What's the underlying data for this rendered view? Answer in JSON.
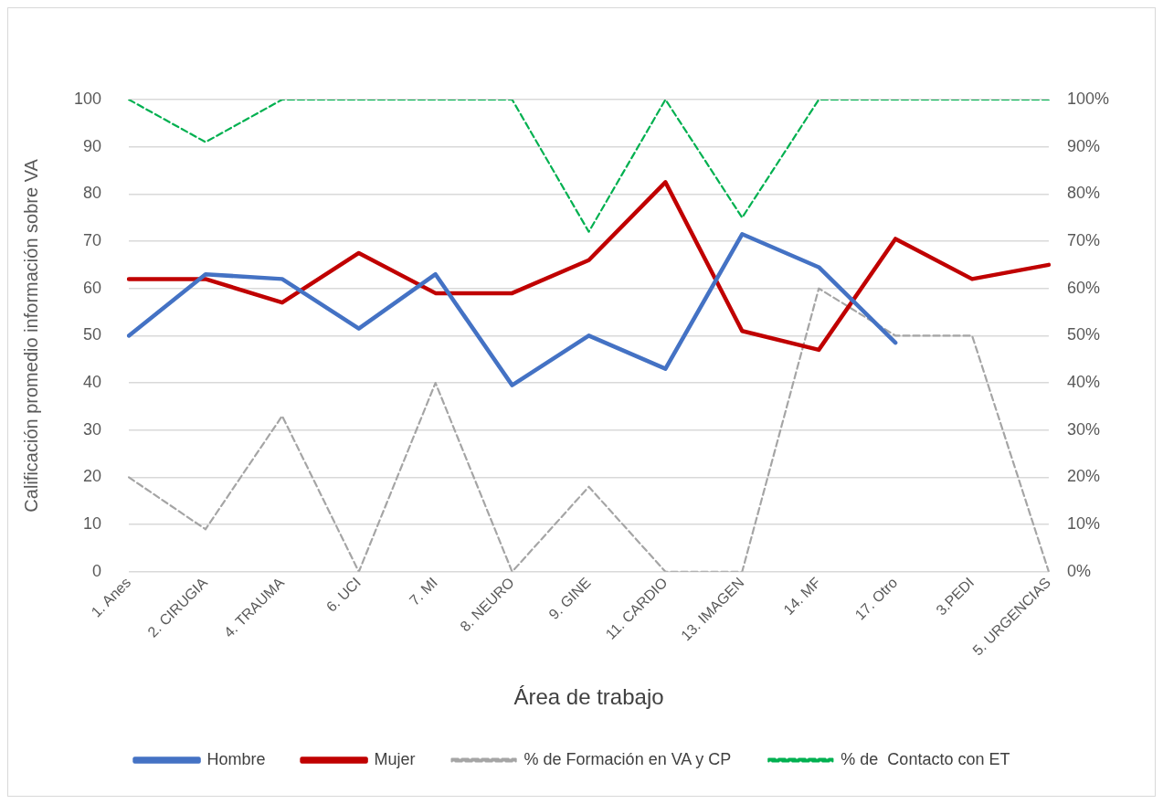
{
  "chart_data": {
    "type": "line",
    "xlabel": "Área de trabajo",
    "ylabel": "Calificación promedio información sobre VA",
    "categories": [
      "1. Anes",
      "2. CIRUGIA",
      "4. TRAUMA",
      "6. UCI",
      "7. MI",
      "8. NEURO",
      "9. GINE",
      "11. CARDIO",
      "13. IMAGEN",
      "14. MF",
      "17. Otro",
      "3.PEDI",
      "5. URGENCIAS"
    ],
    "series": [
      {
        "name": "Hombre",
        "color": "#4472c4",
        "line_style": "solid",
        "values": [
          50,
          63,
          62,
          51.5,
          63,
          39.5,
          50,
          43,
          71.5,
          64.5,
          48.5,
          null,
          null
        ]
      },
      {
        "name": "Mujer",
        "color": "#c00000",
        "line_style": "solid",
        "values": [
          62,
          62,
          57,
          67.5,
          59,
          59,
          66,
          82.5,
          51,
          47,
          70.5,
          62,
          65
        ]
      },
      {
        "name": "% de Formación en VA y CP",
        "color": "#a5a5a5",
        "line_style": "dashed",
        "axis": "y2",
        "values": [
          20,
          9,
          33,
          0,
          40,
          0,
          18,
          0,
          0,
          60,
          50,
          50,
          0
        ]
      },
      {
        "name": "% de  Contacto con ET",
        "color": "#00b050",
        "line_style": "dashed",
        "axis": "y2",
        "values": [
          100,
          91,
          100,
          100,
          100,
          100,
          72,
          100,
          75,
          100,
          100,
          100,
          100
        ]
      }
    ],
    "ylim": [
      0,
      100
    ],
    "yticks": [
      0,
      10,
      20,
      30,
      40,
      50,
      60,
      70,
      80,
      90,
      100
    ],
    "y2lim": [
      0,
      100
    ],
    "y2ticks": [
      {
        "value": 0,
        "label": "0%"
      },
      {
        "value": 10,
        "label": "10%"
      },
      {
        "value": 20,
        "label": "20%"
      },
      {
        "value": 30,
        "label": "30%"
      },
      {
        "value": 40,
        "label": "40%"
      },
      {
        "value": 50,
        "label": "50%"
      },
      {
        "value": 60,
        "label": "60%"
      },
      {
        "value": 70,
        "label": "70%"
      },
      {
        "value": 80,
        "label": "80%"
      },
      {
        "value": 90,
        "label": "90%"
      },
      {
        "value": 100,
        "label": "100%"
      }
    ],
    "grid": "y",
    "legend": "bottom",
    "marker": "none"
  }
}
